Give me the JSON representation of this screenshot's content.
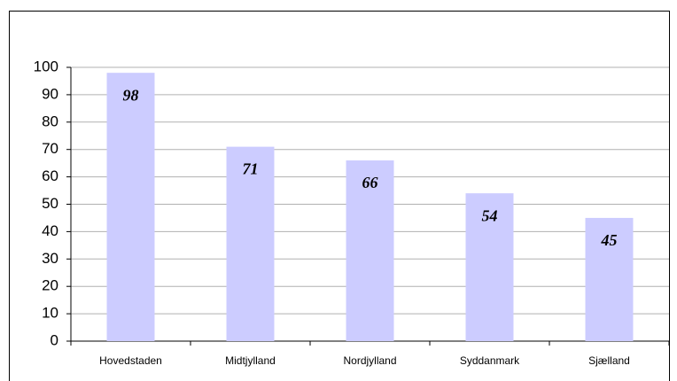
{
  "chart_data": {
    "type": "bar",
    "categories": [
      "Hovedstaden",
      "Midtjylland",
      "Nordjylland",
      "Syddanmark",
      "Sjælland"
    ],
    "values": [
      98,
      71,
      66,
      54,
      45
    ],
    "color": "#ccccff",
    "ylim": [
      0,
      100
    ],
    "yticks": [
      0,
      10,
      20,
      30,
      40,
      50,
      60,
      70,
      80,
      90,
      100
    ],
    "grid": true
  }
}
